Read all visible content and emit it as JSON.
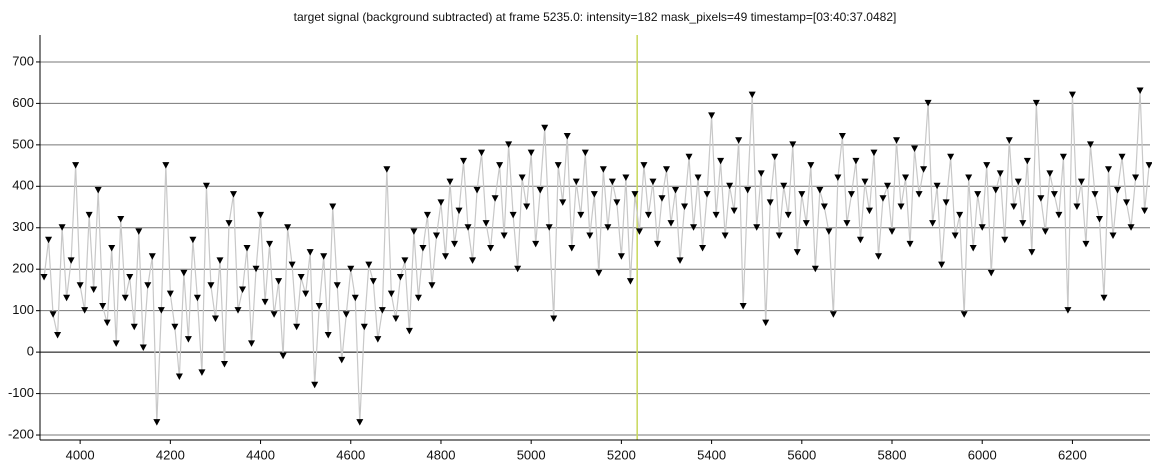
{
  "chart_data": {
    "type": "line",
    "title": "target signal (background subtracted) at frame 5235.0: intensity=182 mask_pixels=49 timestamp=[03:40:37.0482]",
    "x": [
      3920,
      3930,
      3940,
      3950,
      3960,
      3970,
      3980,
      3990,
      4000,
      4010,
      4020,
      4030,
      4040,
      4050,
      4060,
      4070,
      4080,
      4090,
      4100,
      4110,
      4120,
      4130,
      4140,
      4150,
      4160,
      4170,
      4180,
      4190,
      4200,
      4210,
      4220,
      4230,
      4240,
      4250,
      4260,
      4270,
      4280,
      4290,
      4300,
      4310,
      4320,
      4330,
      4340,
      4350,
      4360,
      4370,
      4380,
      4390,
      4400,
      4410,
      4420,
      4430,
      4440,
      4450,
      4460,
      4470,
      4480,
      4490,
      4500,
      4510,
      4520,
      4530,
      4540,
      4550,
      4560,
      4570,
      4580,
      4590,
      4600,
      4610,
      4620,
      4630,
      4640,
      4650,
      4660,
      4670,
      4680,
      4690,
      4700,
      4710,
      4720,
      4730,
      4740,
      4750,
      4760,
      4770,
      4780,
      4790,
      4800,
      4810,
      4820,
      4830,
      4840,
      4850,
      4860,
      4870,
      4880,
      4890,
      4900,
      4910,
      4920,
      4930,
      4940,
      4950,
      4960,
      4970,
      4980,
      4990,
      5000,
      5010,
      5020,
      5030,
      5040,
      5050,
      5060,
      5070,
      5080,
      5090,
      5100,
      5110,
      5120,
      5130,
      5140,
      5150,
      5160,
      5170,
      5180,
      5190,
      5200,
      5210,
      5220,
      5230,
      5240,
      5250,
      5260,
      5270,
      5280,
      5290,
      5300,
      5310,
      5320,
      5330,
      5340,
      5350,
      5360,
      5370,
      5380,
      5390,
      5400,
      5410,
      5420,
      5430,
      5440,
      5450,
      5460,
      5470,
      5480,
      5490,
      5500,
      5510,
      5520,
      5530,
      5540,
      5550,
      5560,
      5570,
      5580,
      5590,
      5600,
      5610,
      5620,
      5630,
      5640,
      5650,
      5660,
      5670,
      5680,
      5690,
      5700,
      5710,
      5720,
      5730,
      5740,
      5750,
      5760,
      5770,
      5780,
      5790,
      5800,
      5810,
      5820,
      5830,
      5840,
      5850,
      5860,
      5870,
      5880,
      5890,
      5900,
      5910,
      5920,
      5930,
      5940,
      5950,
      5960,
      5970,
      5980,
      5990,
      6000,
      6010,
      6020,
      6030,
      6040,
      6050,
      6060,
      6070,
      6080,
      6090,
      6100,
      6110,
      6120,
      6130,
      6140,
      6150,
      6160,
      6170,
      6180,
      6190,
      6200,
      6210,
      6220,
      6230,
      6240,
      6250,
      6260,
      6270,
      6280,
      6290,
      6300,
      6310,
      6320,
      6330,
      6340,
      6350,
      6360,
      6370
    ],
    "values": [
      180,
      270,
      90,
      40,
      300,
      130,
      220,
      450,
      160,
      100,
      330,
      150,
      390,
      110,
      70,
      250,
      20,
      320,
      130,
      180,
      60,
      290,
      10,
      160,
      230,
      -170,
      100,
      450,
      140,
      60,
      -60,
      190,
      30,
      270,
      130,
      -50,
      400,
      160,
      80,
      220,
      -30,
      310,
      380,
      100,
      150,
      250,
      20,
      200,
      330,
      120,
      260,
      90,
      170,
      -10,
      300,
      210,
      60,
      180,
      140,
      240,
      -80,
      110,
      230,
      40,
      350,
      160,
      -20,
      90,
      200,
      130,
      -170,
      60,
      210,
      170,
      30,
      100,
      440,
      140,
      80,
      180,
      220,
      50,
      290,
      130,
      250,
      330,
      160,
      280,
      360,
      230,
      410,
      260,
      340,
      460,
      300,
      220,
      390,
      480,
      310,
      250,
      370,
      450,
      280,
      500,
      330,
      200,
      420,
      350,
      480,
      260,
      390,
      540,
      300,
      80,
      450,
      360,
      520,
      250,
      410,
      330,
      480,
      280,
      380,
      190,
      440,
      300,
      410,
      360,
      230,
      420,
      170,
      380,
      290,
      450,
      330,
      410,
      260,
      370,
      440,
      310,
      390,
      220,
      350,
      470,
      300,
      420,
      250,
      380,
      570,
      330,
      460,
      280,
      400,
      340,
      510,
      110,
      390,
      620,
      300,
      430,
      70,
      360,
      470,
      280,
      400,
      330,
      500,
      240,
      380,
      310,
      450,
      200,
      390,
      350,
      290,
      90,
      420,
      520,
      310,
      380,
      460,
      270,
      410,
      340,
      480,
      230,
      370,
      400,
      290,
      510,
      350,
      420,
      260,
      490,
      380,
      440,
      600,
      310,
      400,
      210,
      360,
      470,
      280,
      330,
      90,
      420,
      250,
      380,
      300,
      450,
      190,
      390,
      430,
      270,
      510,
      350,
      410,
      310,
      460,
      240,
      600,
      370,
      290,
      430,
      380,
      330,
      470,
      100,
      620,
      350,
      410,
      260,
      500,
      380,
      320,
      130,
      440,
      280,
      390,
      470,
      360,
      300,
      420,
      630,
      340,
      450
    ],
    "line_color": "#c8c8c8",
    "marker_color": "#000000",
    "current_frame": 5235,
    "current_frame_color": "#c8d85a",
    "xlim": [
      3911,
      6372
    ],
    "ylim": [
      -212,
      765
    ],
    "xticks": [
      4000,
      4200,
      4400,
      4600,
      4800,
      5000,
      5200,
      5400,
      5600,
      5800,
      6000,
      6200
    ],
    "yticks": [
      -200,
      -100,
      0,
      100,
      200,
      300,
      400,
      500,
      600,
      700
    ],
    "grid": true
  }
}
